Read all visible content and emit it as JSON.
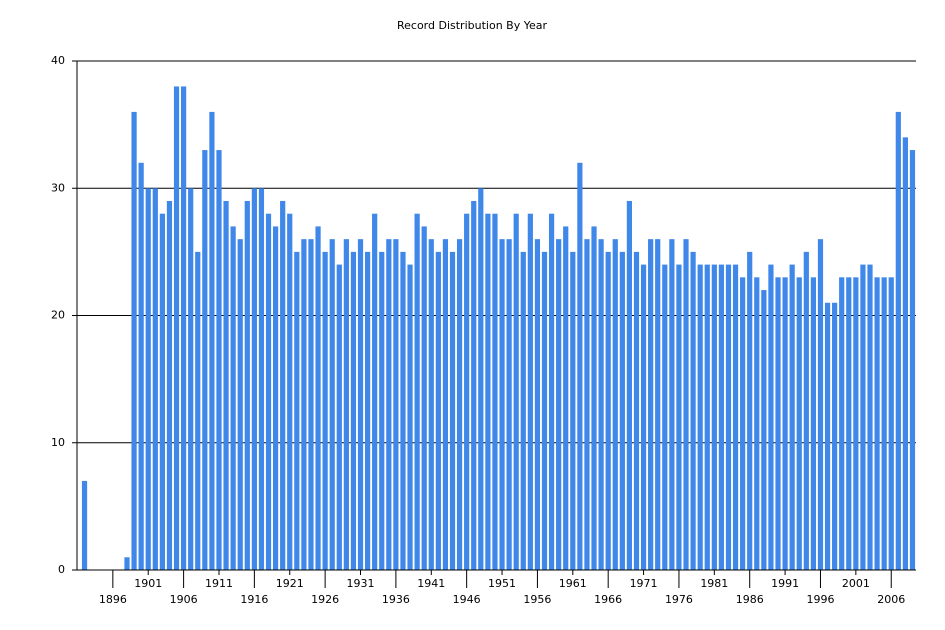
{
  "chart_data": {
    "type": "bar",
    "title": "Record Distribution By Year",
    "categories": [
      null,
      null,
      null,
      null,
      "1896",
      null,
      null,
      null,
      null,
      "1901",
      null,
      null,
      null,
      null,
      "1906",
      null,
      null,
      null,
      null,
      "1911",
      null,
      null,
      null,
      null,
      "1916",
      null,
      null,
      null,
      null,
      "1921",
      null,
      null,
      null,
      null,
      "1926",
      null,
      null,
      null,
      null,
      "1931",
      null,
      null,
      null,
      null,
      "1936",
      null,
      null,
      null,
      null,
      "1941",
      null,
      null,
      null,
      null,
      "1946",
      null,
      null,
      null,
      null,
      "1951",
      null,
      null,
      null,
      null,
      "1956",
      null,
      null,
      null,
      null,
      "1961",
      null,
      null,
      null,
      null,
      "1966",
      null,
      null,
      null,
      null,
      "1971",
      null,
      null,
      null,
      null,
      "1976",
      null,
      null,
      null,
      null,
      "1981",
      null,
      null,
      null,
      null,
      "1986",
      null,
      null,
      null,
      null,
      "1991",
      null,
      null,
      null,
      null,
      "1996",
      null,
      null,
      null,
      null,
      "2001",
      null,
      null,
      null,
      null,
      "2006",
      null,
      null,
      null
    ],
    "values": [
      7,
      0,
      0,
      0,
      0,
      0,
      1,
      36,
      32,
      30,
      30,
      28,
      29,
      38,
      38,
      30,
      25,
      33,
      36,
      33,
      29,
      27,
      26,
      29,
      30,
      30,
      28,
      27,
      29,
      28,
      25,
      26,
      26,
      27,
      25,
      26,
      24,
      26,
      25,
      26,
      25,
      28,
      25,
      26,
      26,
      25,
      24,
      28,
      27,
      26,
      25,
      26,
      25,
      26,
      28,
      29,
      30,
      28,
      28,
      26,
      26,
      28,
      25,
      28,
      26,
      25,
      28,
      26,
      27,
      25,
      32,
      26,
      27,
      26,
      25,
      26,
      25,
      29,
      25,
      24,
      26,
      26,
      24,
      26,
      24,
      26,
      25,
      24,
      24,
      24,
      24,
      24,
      24,
      23,
      25,
      23,
      22,
      24,
      23,
      23,
      24,
      23,
      25,
      23,
      26,
      21,
      21,
      23,
      23,
      23,
      24,
      24,
      23,
      23,
      23,
      36,
      34,
      33
    ],
    "color": "#3f87e8",
    "ylim": [
      0,
      40
    ],
    "yticks": [
      0,
      10,
      20,
      30,
      40
    ],
    "grid": true
  }
}
